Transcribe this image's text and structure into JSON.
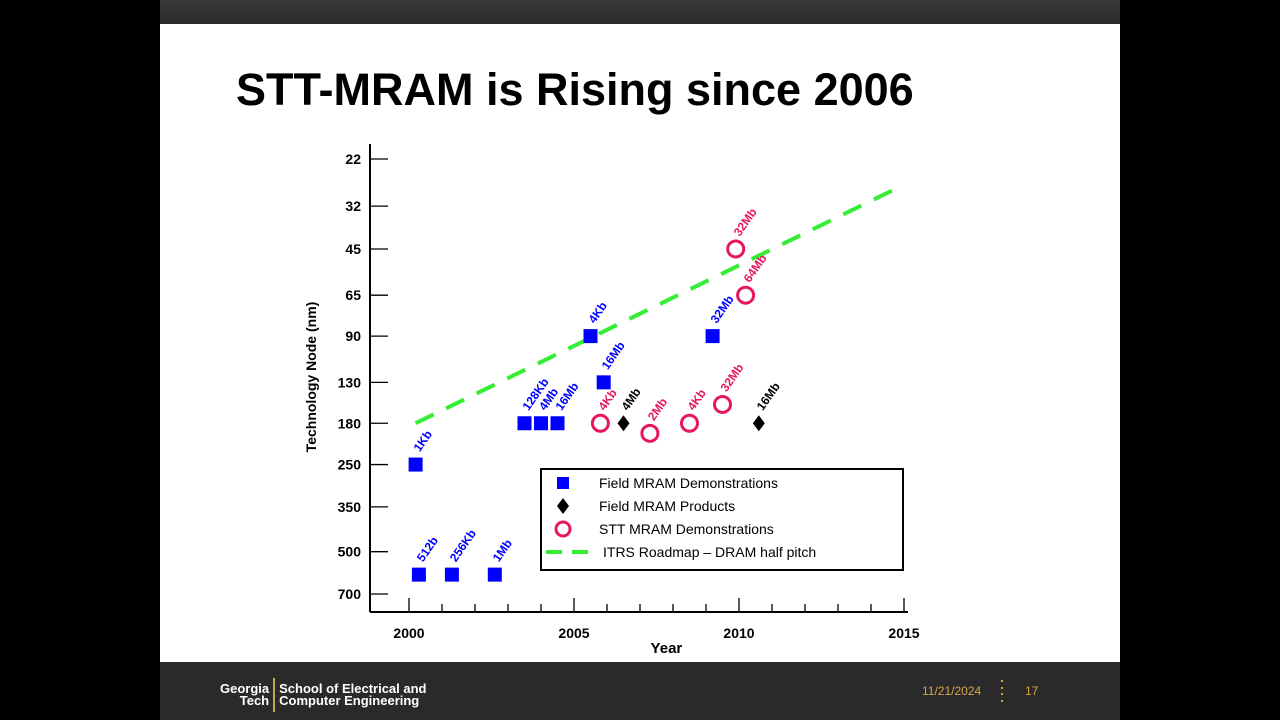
{
  "slide": {
    "title": "STT-MRAM is Rising since 2006"
  },
  "footer": {
    "logo_line1": "Georgia",
    "logo_line2": "Tech",
    "school_line1": "School of Electrical and",
    "school_line2": "Computer Engineering",
    "date": "11/21/2024",
    "page": "17"
  },
  "chart_data": {
    "type": "scatter",
    "xlabel": "Year",
    "ylabel": "Technology Node (nm)",
    "xlim": [
      1999.1,
      2015.1
    ],
    "x_ticks": [
      2000,
      2005,
      2010,
      2015
    ],
    "y_categories": [
      "22",
      "32",
      "45",
      "65",
      "90",
      "130",
      "180",
      "250",
      "350",
      "500",
      "700"
    ],
    "colors": {
      "field_demo": "#0000ff",
      "field_product": "#000000",
      "stt_demo": "#e8175d",
      "roadmap": "#33ee33"
    },
    "legend": {
      "placement": "bottom-right",
      "entries": [
        {
          "key": "field_demo",
          "label": "Field MRAM Demonstrations"
        },
        {
          "key": "field_product",
          "label": "Field MRAM Products"
        },
        {
          "key": "stt_demo",
          "label": "STT MRAM Demonstrations"
        },
        {
          "key": "roadmap",
          "label": "ITRS Roadmap  –  DRAM half pitch"
        }
      ]
    },
    "series": [
      {
        "key": "field_demo",
        "marker": "square",
        "points": [
          {
            "x": 2000.2,
            "y": 250,
            "label": "1Kb"
          },
          {
            "x": 2000.3,
            "y": 600,
            "label": "512b"
          },
          {
            "x": 2001.3,
            "y": 600,
            "label": "256Kb"
          },
          {
            "x": 2002.6,
            "y": 600,
            "label": "1Mb"
          },
          {
            "x": 2003.5,
            "y": 180,
            "label": "128Kb"
          },
          {
            "x": 2004.0,
            "y": 180,
            "label": "4Mb"
          },
          {
            "x": 2004.5,
            "y": 180,
            "label": "16Mb"
          },
          {
            "x": 2005.5,
            "y": 90,
            "label": "4Kb"
          },
          {
            "x": 2005.9,
            "y": 130,
            "label": "16Mb"
          },
          {
            "x": 2009.2,
            "y": 90,
            "label": "32Mb"
          }
        ]
      },
      {
        "key": "field_product",
        "marker": "diamond",
        "points": [
          {
            "x": 2006.5,
            "y": 180,
            "label": "4Mb"
          },
          {
            "x": 2010.6,
            "y": 180,
            "label": "16Mb"
          }
        ]
      },
      {
        "key": "stt_demo",
        "marker": "circle",
        "points": [
          {
            "x": 2005.8,
            "y": 180,
            "label": "4Kb"
          },
          {
            "x": 2007.3,
            "y": 195,
            "label": "2Mb"
          },
          {
            "x": 2008.5,
            "y": 180,
            "label": "4Kb"
          },
          {
            "x": 2009.5,
            "y": 155,
            "label": "32Mb"
          },
          {
            "x": 2009.9,
            "y": 45,
            "label": "32Mb"
          },
          {
            "x": 2010.2,
            "y": 65,
            "label": "64Mb"
          }
        ]
      },
      {
        "key": "roadmap",
        "marker": "dashed-line",
        "points": [
          {
            "x": 2000.2,
            "y": 180
          },
          {
            "x": 2015.0,
            "y": 27
          }
        ]
      }
    ]
  }
}
